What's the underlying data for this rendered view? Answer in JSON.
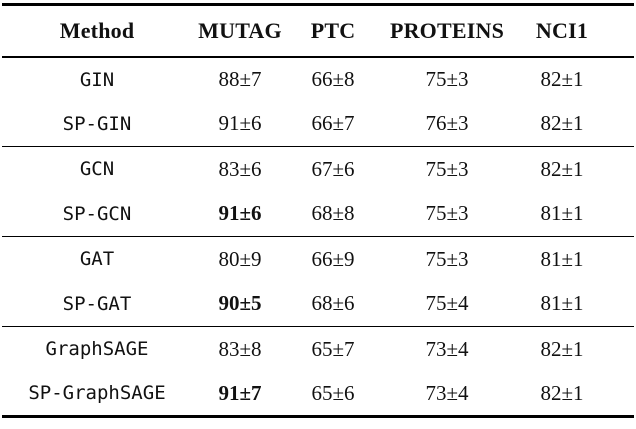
{
  "table": {
    "columns": [
      "Method",
      "MUTAG",
      "PTC",
      "PROTEINS",
      "NCI1"
    ],
    "rows": [
      {
        "method": "GIN",
        "mutag": "88±7",
        "ptc": "66±8",
        "proteins": "75±3",
        "nci1": "82±1"
      },
      {
        "method": "SP-GIN",
        "mutag": "91±6",
        "ptc": "66±7",
        "proteins": "76±3",
        "nci1": "82±1"
      },
      {
        "method": "GCN",
        "mutag": "83±6",
        "ptc": "67±6",
        "proteins": "75±3",
        "nci1": "82±1"
      },
      {
        "method": "SP-GCN",
        "mutag": "91±6",
        "ptc": "68±8",
        "proteins": "75±3",
        "nci1": "81±1"
      },
      {
        "method": "GAT",
        "mutag": "80±9",
        "ptc": "66±9",
        "proteins": "75±3",
        "nci1": "81±1"
      },
      {
        "method": "SP-GAT",
        "mutag": "90±5",
        "ptc": "68±6",
        "proteins": "75±4",
        "nci1": "81±1"
      },
      {
        "method": "GraphSAGE",
        "mutag": "83±8",
        "ptc": "65±7",
        "proteins": "73±4",
        "nci1": "82±1"
      },
      {
        "method": "SP-GraphSAGE",
        "mutag": "91±7",
        "ptc": "65±6",
        "proteins": "73±4",
        "nci1": "82±1"
      }
    ],
    "bold_cells": [
      {
        "row": "SP-GCN",
        "column": "MUTAG",
        "value": "91±6"
      },
      {
        "row": "SP-GAT",
        "column": "MUTAG",
        "value": "90±5"
      },
      {
        "row": "SP-GraphSAGE",
        "column": "MUTAG",
        "value": "91±7"
      }
    ],
    "colors": {
      "text": "#111111",
      "rule": "#000000",
      "background": "#ffffff"
    }
  }
}
